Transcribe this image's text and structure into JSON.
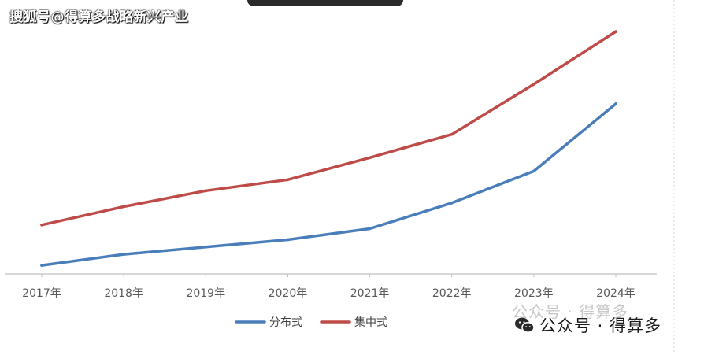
{
  "watermark": {
    "source_text": "搜狐号@得算多战略新兴产业",
    "wechat_ghost_text": "公众号 · 得算多",
    "wechat_text": "公众号 · 得算多"
  },
  "chart_data": {
    "type": "line",
    "title": "",
    "xlabel": "",
    "ylabel": "",
    "categories": [
      "2017年",
      "2018年",
      "2019年",
      "2020年",
      "2021年",
      "2022年",
      "2023年",
      "2024年"
    ],
    "ylim": [
      0,
      100
    ],
    "grid": false,
    "legend_position": "bottom",
    "series": [
      {
        "name": "分布式",
        "color": "#4a7ebb",
        "values": [
          3.5,
          8,
          11,
          14,
          18.5,
          29,
          42,
          69.5
        ]
      },
      {
        "name": "集中式",
        "color": "#be4b48",
        "values": [
          20,
          27.5,
          34,
          38.5,
          47.5,
          57,
          77.5,
          99
        ]
      }
    ]
  }
}
